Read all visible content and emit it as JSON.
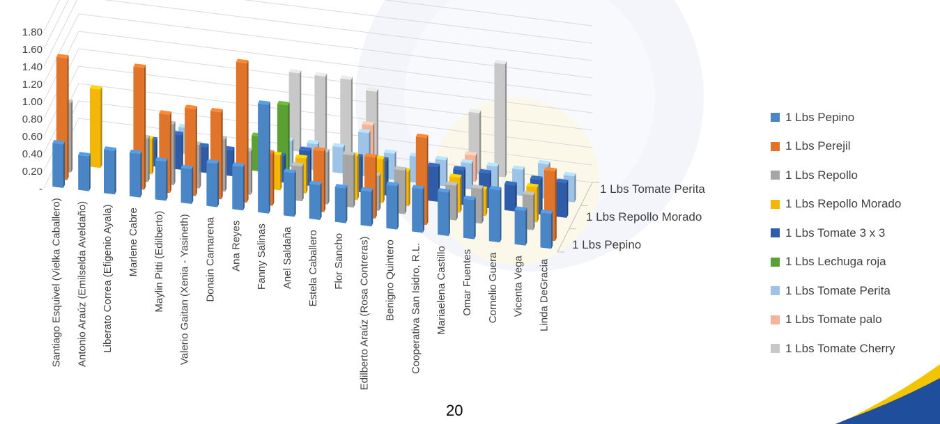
{
  "chart_data": {
    "type": "bar",
    "title": "",
    "categories": [
      "Santiago Esquivel (Vielka Caballero)",
      "Antonio  Araúz (Emilselda Aveldaño)",
      "Liberato  Correa (Efigenio Ayala)",
      "Marlene  Cabre",
      "Maylin  Pitti (Edilberto)",
      "Valerio Gaitan (Xenia - Yasineth)",
      "Donain Camarena",
      "Ana Reyes",
      "Fanny Salinas",
      "Anel Saldaña",
      "Estela Caballero",
      "Flor Sancho",
      "Edilberto Araúz (Rosa Contreras)",
      "Benigno Quintero",
      "Cooperativa San Isidro, R.L.",
      "Mariaelena Castillo",
      "Omar Fuentes",
      "Cornelio Guera",
      "Vicenta Vega",
      "Linda DeGracia"
    ],
    "depth_axis_labels": [
      "1 Lbs Pepino",
      "1 Lbs Repollo Morado",
      "1 Lbs Tomate Perita"
    ],
    "y_ticks": [
      "-",
      "0.20",
      "0.40",
      "0.60",
      "0.80",
      "1.00",
      "1.20",
      "1.40",
      "1.60",
      "1.80"
    ],
    "ylim": [
      0,
      1.8
    ],
    "grid": true,
    "legend_position": "right",
    "series": [
      {
        "name": "1 Lbs Pepino",
        "color": "#4a86c5",
        "values": [
          0.5,
          0.4,
          0.5,
          0.5,
          0.45,
          0.4,
          0.5,
          0.5,
          1.25,
          0.5,
          0.4,
          0.4,
          0.4,
          0.5,
          0.5,
          0.5,
          0.45,
          0.6,
          0.4,
          0.4
        ]
      },
      {
        "name": "1 Lbs Perejil",
        "color": "#e0742a",
        "values": [
          1.4,
          null,
          null,
          1.4,
          0.9,
          1.0,
          1.0,
          1.6,
          0.6,
          null,
          0.7,
          null,
          0.7,
          null,
          1.0,
          null,
          null,
          null,
          null,
          0.8
        ]
      },
      {
        "name": "1 Lbs Repollo",
        "color": "#a6a6a6",
        "values": [
          0.8,
          null,
          null,
          0.5,
          0.7,
          0.5,
          0.6,
          0.5,
          null,
          0.4,
          0.6,
          0.6,
          0.4,
          0.5,
          null,
          0.4,
          0.4,
          null,
          0.4,
          null
        ]
      },
      {
        "name": "1 Lbs Repollo Morado",
        "color": "#f2b707",
        "values": [
          null,
          0.9,
          null,
          0.4,
          null,
          null,
          null,
          null,
          0.4,
          0.4,
          null,
          0.5,
          0.5,
          0.4,
          null,
          0.4,
          0.3,
          null,
          0.4,
          null
        ]
      },
      {
        "name": "1 Lbs Tomate 3 x 3",
        "color": "#2f5ca8",
        "values": [
          null,
          null,
          null,
          0.3,
          0.4,
          0.3,
          0.3,
          null,
          0.3,
          0.4,
          null,
          0.4,
          0.4,
          null,
          0.4,
          0.4,
          0.4,
          0.3,
          0.4,
          0.4
        ]
      },
      {
        "name": "1 Lbs Lechuga roja",
        "color": "#5aa032",
        "values": [
          null,
          null,
          null,
          null,
          null,
          null,
          null,
          0.4,
          0.8,
          null,
          null,
          null,
          null,
          null,
          null,
          null,
          null,
          null,
          null,
          null
        ]
      },
      {
        "name": "1 Lbs Tomate Perita",
        "color": "#9dc3e6",
        "values": [
          null,
          null,
          null,
          null,
          0.3,
          null,
          null,
          null,
          0.3,
          0.3,
          0.3,
          0.5,
          0.3,
          0.3,
          0.3,
          0.3,
          0.3,
          0.3,
          0.4,
          0.3
        ]
      },
      {
        "name": "1 Lbs Tomate palo",
        "color": "#f4b39b",
        "values": [
          null,
          null,
          null,
          null,
          null,
          null,
          null,
          null,
          null,
          null,
          null,
          0.5,
          null,
          null,
          null,
          0.3,
          null,
          null,
          null,
          null
        ]
      },
      {
        "name": "1 Lbs Tomate Cherry",
        "color": "#c8c8c8",
        "values": [
          null,
          null,
          null,
          null,
          null,
          null,
          null,
          null,
          0.9,
          0.9,
          0.9,
          0.8,
          null,
          null,
          null,
          0.7,
          1.3,
          null,
          null,
          null
        ]
      }
    ]
  },
  "page": {
    "number": "20"
  }
}
